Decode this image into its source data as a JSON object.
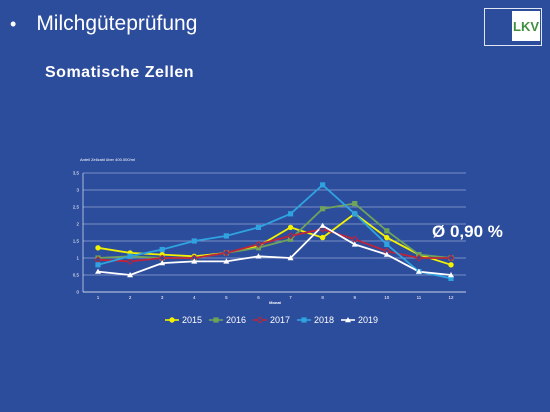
{
  "header": {
    "bullet": "•",
    "title": "Milchgüteprüfung"
  },
  "logo": {
    "text": "LKV"
  },
  "subtitle": "Somatische Zellen",
  "annotation": "Ø 0,90 %",
  "chart_data": {
    "type": "line",
    "title": "",
    "ylabel": "Anteil Zellzahl über 400.000/ml",
    "xlabel": "Monat",
    "categories": [
      "1",
      "2",
      "3",
      "4",
      "5",
      "6",
      "7",
      "8",
      "9",
      "10",
      "11",
      "12"
    ],
    "ylim": [
      0,
      3.5
    ],
    "yticks": [
      "0",
      "0,5",
      "1",
      "1,5",
      "2",
      "2,5",
      "3",
      "3,5"
    ],
    "grid": true,
    "legend_position": "bottom",
    "series": [
      {
        "name": "2015",
        "color": "#f2f200",
        "marker": "circle",
        "values": [
          1.3,
          1.15,
          1.1,
          1.05,
          1.15,
          1.35,
          1.9,
          1.6,
          2.3,
          1.6,
          1.1,
          0.8
        ]
      },
      {
        "name": "2016",
        "color": "#6fa35a",
        "marker": "square",
        "values": [
          1.0,
          1.05,
          1.0,
          1.0,
          1.15,
          1.3,
          1.55,
          2.45,
          2.6,
          1.8,
          1.1,
          1.0
        ]
      },
      {
        "name": "2017",
        "color": "#c0243a",
        "marker": "diamond",
        "values": [
          0.95,
          0.9,
          1.0,
          1.0,
          1.15,
          1.4,
          1.65,
          1.85,
          1.55,
          1.2,
          1.0,
          1.0
        ]
      },
      {
        "name": "2018",
        "color": "#2fa3e0",
        "marker": "square",
        "values": [
          0.8,
          1.05,
          1.25,
          1.5,
          1.65,
          1.9,
          2.3,
          3.15,
          2.3,
          1.4,
          0.6,
          0.4
        ]
      },
      {
        "name": "2019",
        "color": "#ffffff",
        "marker": "triangle",
        "values": [
          0.6,
          0.5,
          0.85,
          0.9,
          0.9,
          1.05,
          1.0,
          1.95,
          1.4,
          1.1,
          0.6,
          0.5
        ]
      }
    ]
  }
}
